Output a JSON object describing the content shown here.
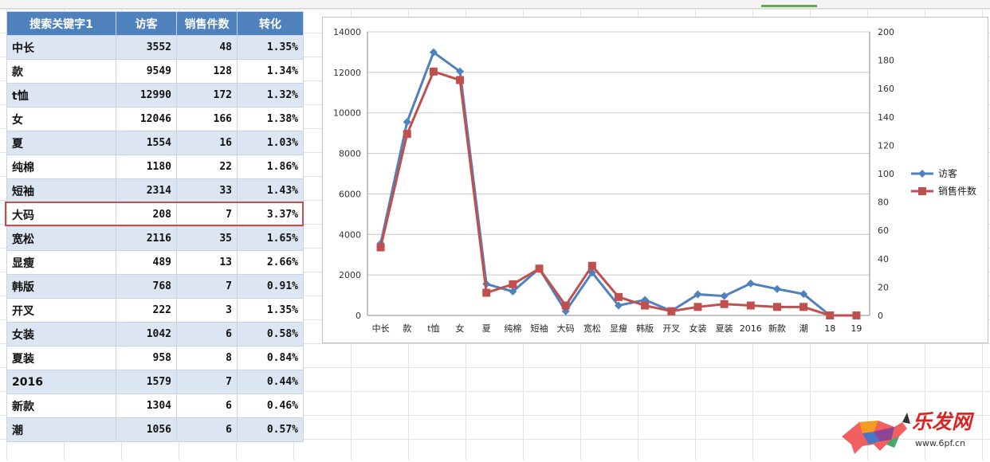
{
  "table": {
    "headers": [
      "搜索关键字1",
      "访客",
      "销售件数",
      "转化"
    ],
    "rows": [
      [
        "中长",
        "3552",
        "48",
        "1.35%"
      ],
      [
        "款",
        "9549",
        "128",
        "1.34%"
      ],
      [
        "t恤",
        "12990",
        "172",
        "1.32%"
      ],
      [
        "女",
        "12046",
        "166",
        "1.38%"
      ],
      [
        "夏",
        "1554",
        "16",
        "1.03%"
      ],
      [
        "纯棉",
        "1180",
        "22",
        "1.86%"
      ],
      [
        "短袖",
        "2314",
        "33",
        "1.43%"
      ],
      [
        "大码",
        "208",
        "7",
        "3.37%"
      ],
      [
        "宽松",
        "2116",
        "35",
        "1.65%"
      ],
      [
        "显瘦",
        "489",
        "13",
        "2.66%"
      ],
      [
        "韩版",
        "768",
        "7",
        "0.91%"
      ],
      [
        "开叉",
        "222",
        "3",
        "1.35%"
      ],
      [
        "女装",
        "1042",
        "6",
        "0.58%"
      ],
      [
        "夏装",
        "958",
        "8",
        "0.84%"
      ],
      [
        "2016",
        "1579",
        "7",
        "0.44%"
      ],
      [
        "新款",
        "1304",
        "6",
        "0.46%"
      ],
      [
        "潮",
        "1056",
        "6",
        "0.57%"
      ]
    ],
    "highlighted_row": "大码",
    "highlight_color": "#c0504d",
    "header_color": "#4f81bd",
    "band_color": "#dce6f2"
  },
  "chart_data": {
    "type": "line",
    "title": "",
    "categories": [
      "中长",
      "款",
      "t恤",
      "女",
      "夏",
      "纯棉",
      "短袖",
      "大码",
      "宽松",
      "显瘦",
      "韩版",
      "开叉",
      "女装",
      "夏装",
      "2016",
      "新款",
      "潮",
      "18",
      "19"
    ],
    "series": [
      {
        "name": "访客",
        "axis": "left",
        "color": "#4f81bd",
        "marker": "diamond",
        "values": [
          3552,
          9549,
          12990,
          12046,
          1554,
          1180,
          2314,
          208,
          2116,
          489,
          768,
          222,
          1042,
          958,
          1579,
          1304,
          1056,
          0,
          0
        ]
      },
      {
        "name": "销售件数",
        "axis": "right",
        "color": "#c0504d",
        "marker": "square",
        "values": [
          48,
          128,
          172,
          166,
          16,
          22,
          33,
          7,
          35,
          13,
          7,
          3,
          6,
          8,
          7,
          6,
          6,
          0,
          0
        ]
      }
    ],
    "y_left": {
      "min": 0,
      "max": 14000,
      "step": 2000
    },
    "y_right": {
      "min": 0,
      "max": 200,
      "step": 20
    },
    "grid": "horizontal",
    "legend_position": "right",
    "xlabel": "",
    "ylabel": ""
  },
  "watermark": {
    "text": "乐发网",
    "url": "www.6pf.cn"
  }
}
